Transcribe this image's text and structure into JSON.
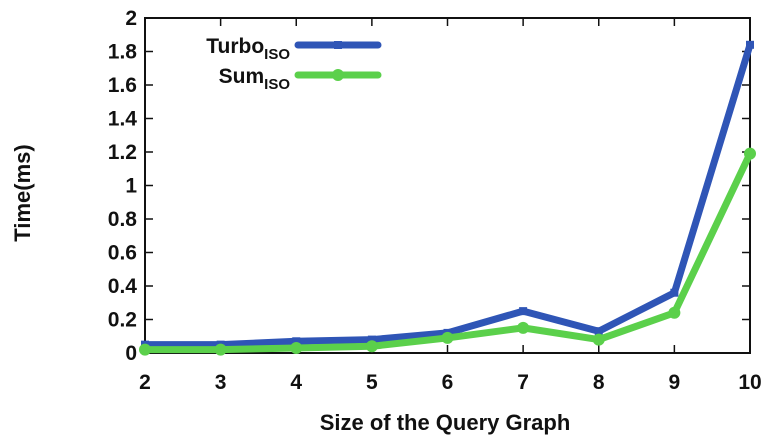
{
  "chart_data": {
    "type": "line",
    "title": "",
    "xlabel": "Size of the Query Graph",
    "ylabel": "Time(ms)",
    "x": [
      2,
      3,
      4,
      5,
      6,
      7,
      8,
      9,
      10
    ],
    "xlim": [
      2,
      10
    ],
    "ylim": [
      0,
      2
    ],
    "yticks": [
      "0",
      "0.2",
      "0.4",
      "0.6",
      "0.8",
      "1",
      "1.2",
      "1.4",
      "1.6",
      "1.8",
      "2"
    ],
    "xticks": [
      "2",
      "3",
      "4",
      "5",
      "6",
      "7",
      "8",
      "9",
      "10"
    ],
    "legend_position": "top-left",
    "grid": false,
    "series": [
      {
        "name": "Turbo",
        "name_sub": "ISO",
        "color": "#2f55b6",
        "values": [
          0.05,
          0.05,
          0.07,
          0.08,
          0.12,
          0.25,
          0.13,
          0.36,
          1.84
        ]
      },
      {
        "name": "Sum",
        "name_sub": "ISO",
        "color": "#5bd04b",
        "values": [
          0.02,
          0.02,
          0.03,
          0.04,
          0.09,
          0.15,
          0.08,
          0.24,
          1.19
        ]
      }
    ]
  }
}
